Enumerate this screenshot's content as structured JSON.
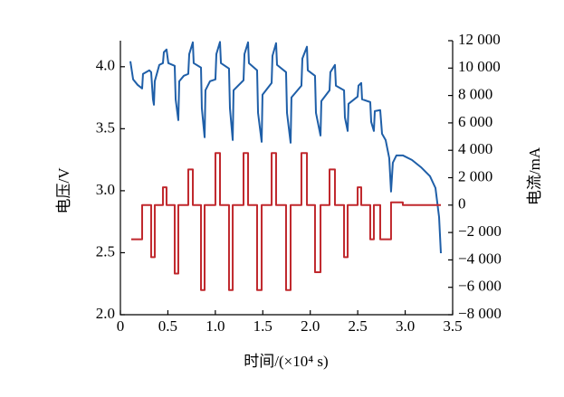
{
  "chart_data": {
    "type": "line",
    "xlabel": "时间/(×10⁴ s)",
    "ylabel": "电压/V",
    "y2label": "电流/mA",
    "xlim": [
      0,
      3.5
    ],
    "xticks": [
      0,
      0.5,
      {
        "value": 1,
        "label": "1.0"
      },
      1.5,
      {
        "value": 2,
        "label": "2.0"
      },
      2.5,
      {
        "value": 3,
        "label": "3.0"
      },
      3.5
    ],
    "ylim": [
      2.0,
      4.21
    ],
    "yticks": [
      {
        "value": 2,
        "label": "2.0"
      },
      2.5,
      {
        "value": 3,
        "label": "3.0"
      },
      3.5,
      {
        "value": 4,
        "label": "4.0"
      }
    ],
    "y2lim": [
      -8000,
      12000
    ],
    "y2ticks": [
      {
        "value": -8000,
        "label": "−8 000"
      },
      {
        "value": -6000,
        "label": "−6 000"
      },
      {
        "value": -4000,
        "label": "−4 000"
      },
      {
        "value": -2000,
        "label": "−2 000"
      },
      0,
      {
        "value": 2000,
        "label": "2 000"
      },
      {
        "value": 4000,
        "label": "4 000"
      },
      {
        "value": 6000,
        "label": "6 000"
      },
      {
        "value": 8000,
        "label": "8 000"
      },
      {
        "value": 10000,
        "label": "10 000"
      },
      {
        "value": 12000,
        "label": "12 000"
      }
    ],
    "series": [
      {
        "color": "#1f5fa8",
        "axis": "y",
        "x": [
          0.105,
          0.134,
          0.181,
          0.229,
          0.238,
          0.305,
          0.324,
          0.343,
          0.353,
          0.362,
          0.41,
          0.448,
          0.458,
          0.486,
          0.505,
          0.572,
          0.582,
          0.61,
          0.62,
          0.668,
          0.715,
          0.725,
          0.763,
          0.772,
          0.849,
          0.858,
          0.887,
          0.896,
          0.944,
          1.001,
          1.011,
          1.049,
          1.059,
          1.144,
          1.154,
          1.183,
          1.192,
          1.297,
          1.307,
          1.345,
          1.354,
          1.44,
          1.45,
          1.488,
          1.497,
          1.593,
          1.602,
          1.64,
          1.65,
          1.745,
          1.755,
          1.793,
          1.802,
          1.907,
          1.917,
          1.965,
          1.974,
          2.05,
          2.06,
          2.108,
          2.117,
          2.203,
          2.212,
          2.26,
          2.27,
          2.356,
          2.365,
          2.394,
          2.403,
          2.499,
          2.508,
          2.537,
          2.546,
          2.632,
          2.642,
          2.67,
          2.68,
          2.737,
          2.756,
          2.794,
          2.832,
          2.851,
          2.87,
          2.908,
          2.975,
          3.071,
          3.166,
          3.261,
          3.319,
          3.357,
          3.376
        ],
        "values": [
          4.044,
          3.898,
          3.854,
          3.825,
          3.942,
          3.971,
          3.956,
          3.737,
          3.693,
          3.883,
          4.015,
          4.029,
          4.117,
          4.139,
          4.029,
          4.007,
          3.737,
          3.569,
          3.883,
          3.927,
          3.942,
          4.102,
          4.197,
          4.029,
          3.993,
          3.664,
          3.431,
          3.81,
          3.883,
          3.898,
          4.102,
          4.2,
          4.029,
          3.985,
          3.664,
          3.409,
          3.81,
          3.891,
          4.102,
          4.197,
          4.029,
          3.971,
          3.628,
          3.394,
          3.774,
          3.869,
          4.088,
          4.19,
          4.015,
          3.956,
          3.628,
          3.387,
          3.752,
          3.847,
          4.066,
          4.161,
          3.971,
          3.927,
          3.628,
          3.445,
          3.723,
          3.81,
          3.956,
          4.015,
          3.847,
          3.81,
          3.591,
          3.482,
          3.701,
          3.759,
          3.847,
          3.869,
          3.737,
          3.715,
          3.555,
          3.482,
          3.642,
          3.65,
          3.46,
          3.409,
          3.263,
          2.993,
          3.226,
          3.285,
          3.285,
          3.248,
          3.19,
          3.117,
          3.022,
          2.788,
          2.496
        ]
      },
      {
        "color": "#c0282d",
        "axis": "y2",
        "x": [
          0.114,
          0.229,
          0.229,
          0.324,
          0.324,
          0.362,
          0.362,
          0.448,
          0.448,
          0.486,
          0.486,
          0.572,
          0.572,
          0.61,
          0.61,
          0.715,
          0.715,
          0.763,
          0.763,
          0.849,
          0.849,
          0.887,
          0.887,
          1.001,
          1.001,
          1.049,
          1.049,
          1.144,
          1.144,
          1.183,
          1.183,
          1.297,
          1.297,
          1.345,
          1.345,
          1.44,
          1.44,
          1.488,
          1.488,
          1.593,
          1.593,
          1.64,
          1.64,
          1.745,
          1.745,
          1.793,
          1.793,
          1.907,
          1.907,
          1.965,
          1.965,
          2.05,
          2.05,
          2.108,
          2.108,
          2.203,
          2.203,
          2.26,
          2.26,
          2.356,
          2.356,
          2.394,
          2.394,
          2.499,
          2.499,
          2.537,
          2.537,
          2.632,
          2.632,
          2.67,
          2.67,
          2.737,
          2.737,
          2.851,
          2.851,
          2.975,
          2.975,
          3.376
        ],
        "values": [
          -2500,
          -2500,
          0,
          0,
          -3800,
          -3800,
          0,
          0,
          1300,
          1300,
          0,
          0,
          -5000,
          -5000,
          0,
          0,
          2600,
          2600,
          0,
          0,
          -6200,
          -6200,
          0,
          0,
          3800,
          3800,
          0,
          0,
          -6200,
          -6200,
          0,
          0,
          3800,
          3800,
          0,
          0,
          -6200,
          -6200,
          0,
          0,
          3800,
          3800,
          0,
          0,
          -6200,
          -6200,
          0,
          0,
          3800,
          3800,
          0,
          0,
          -4900,
          -4900,
          0,
          0,
          2600,
          2600,
          0,
          0,
          -3800,
          -3800,
          0,
          0,
          1300,
          1300,
          0,
          0,
          -2500,
          -2500,
          0,
          0,
          -2500,
          -2500,
          200,
          200,
          0,
          0
        ]
      }
    ]
  }
}
